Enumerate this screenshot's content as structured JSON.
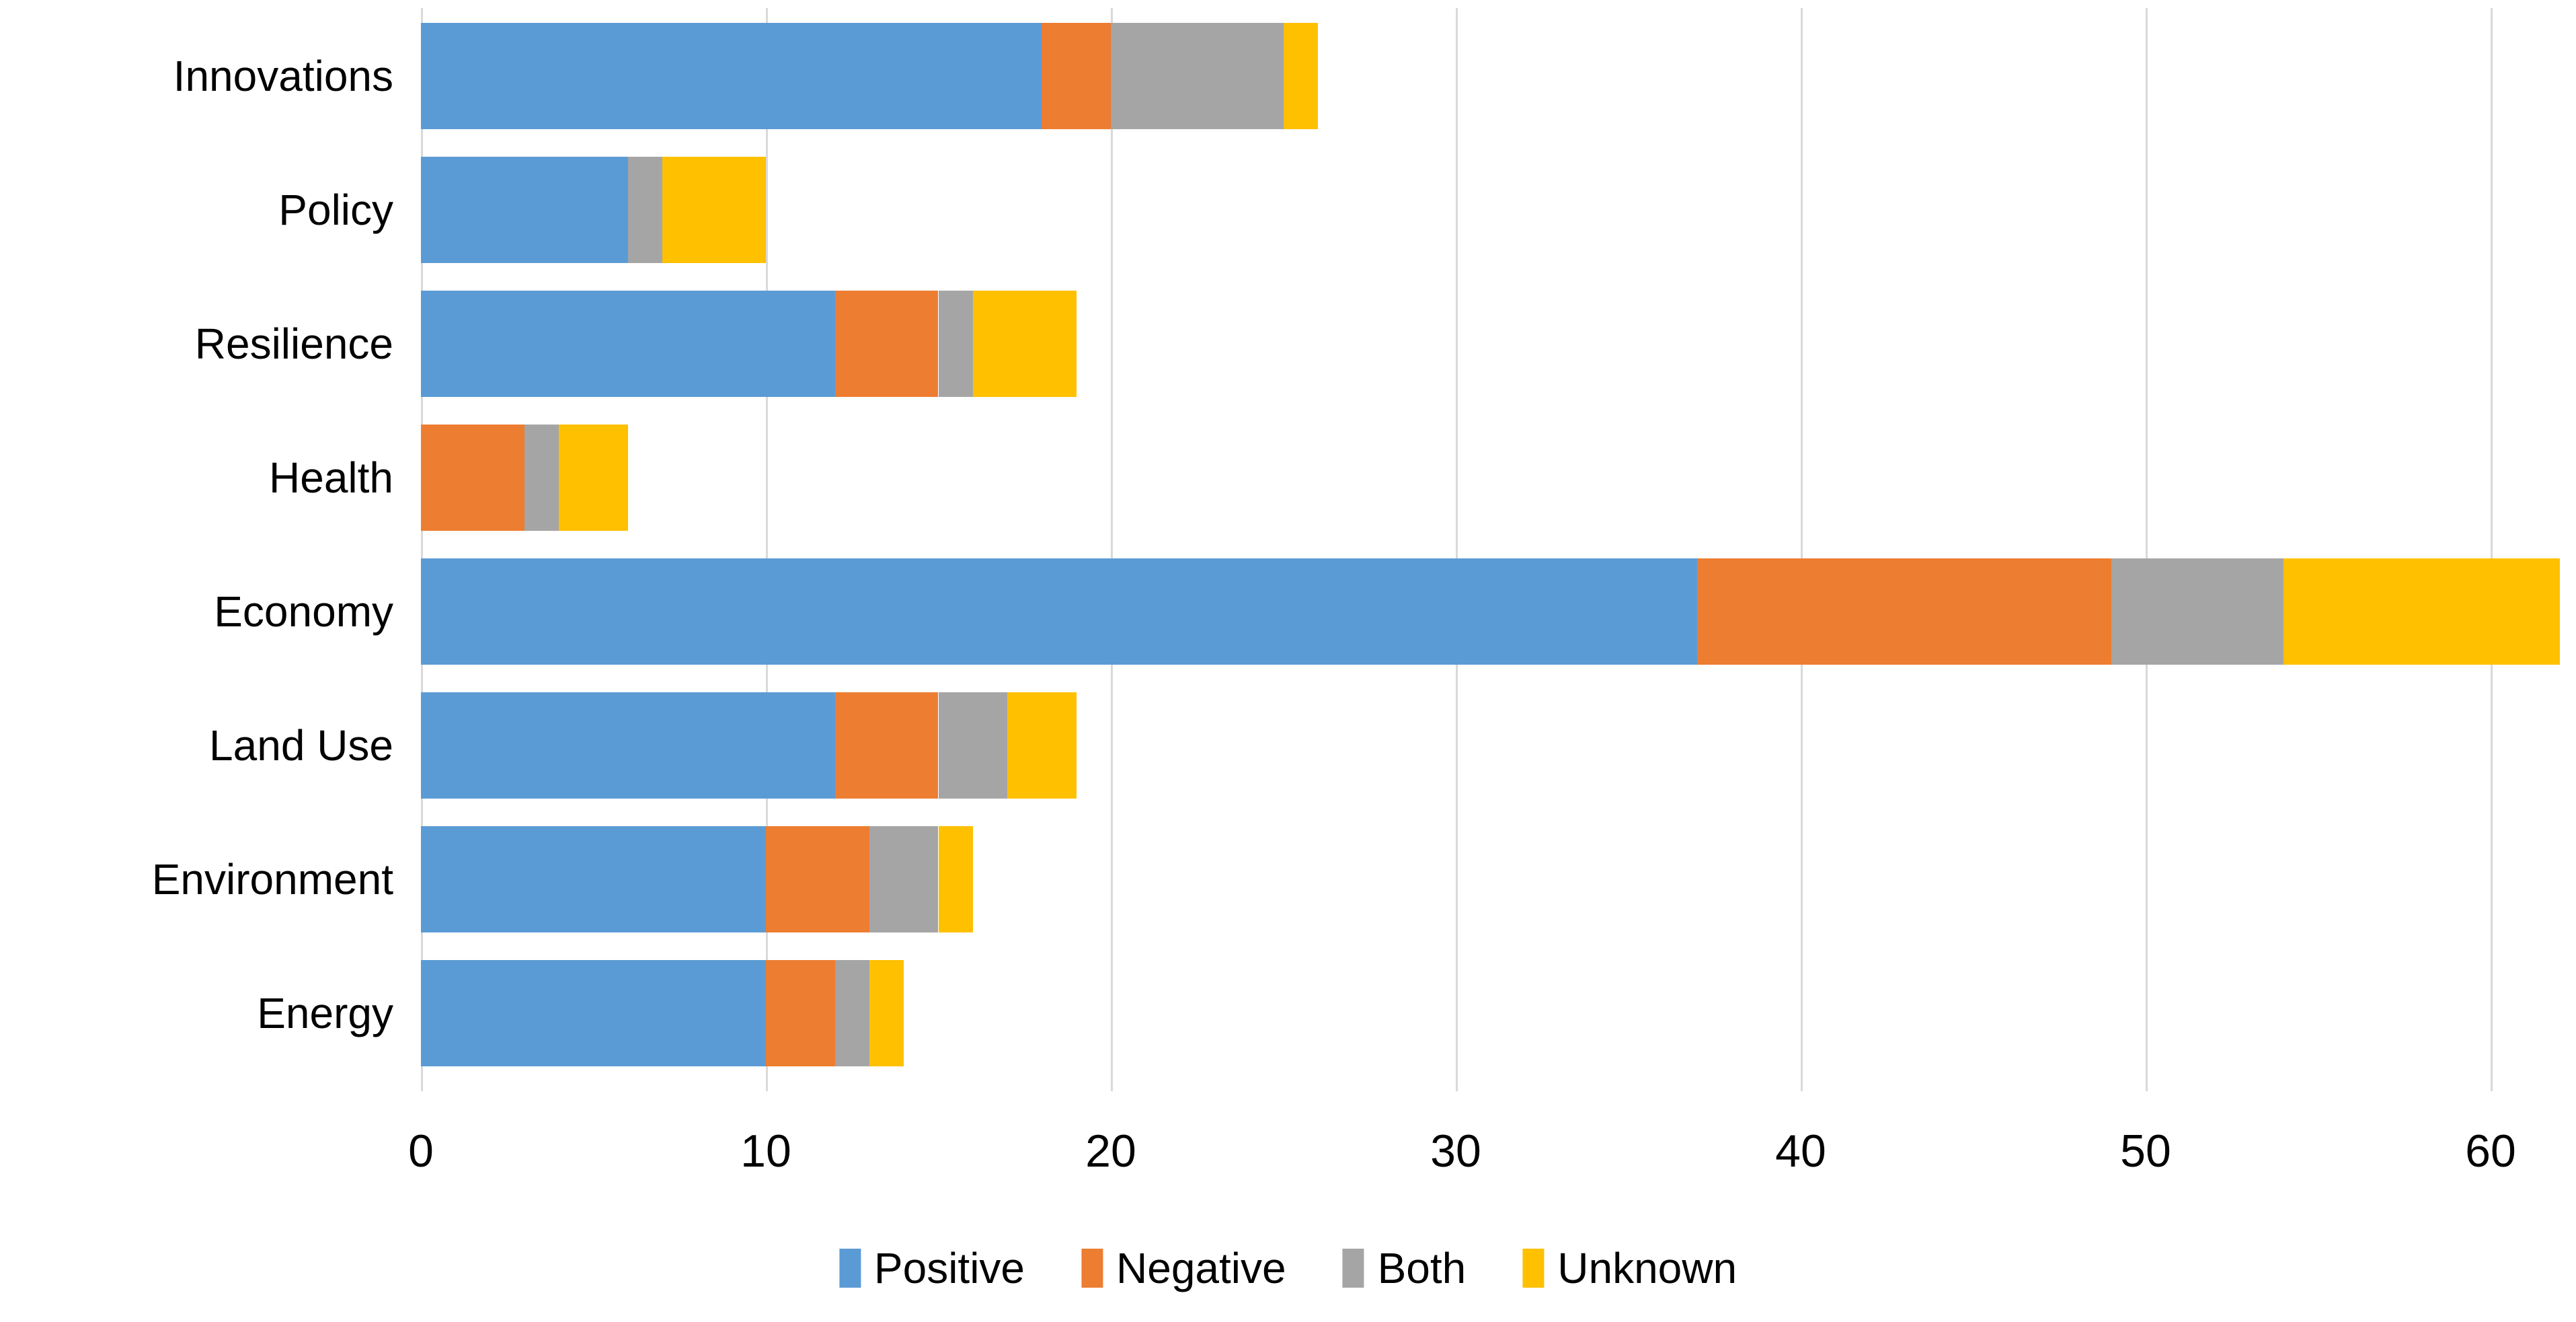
{
  "chart_data": {
    "type": "bar",
    "orientation": "horizontal",
    "stacked": true,
    "title": "",
    "xlabel": "",
    "ylabel": "",
    "categories": [
      "Innovations",
      "Policy",
      "Resilience",
      "Health",
      "Economy",
      "Land Use",
      "Environment",
      "Energy"
    ],
    "series": [
      {
        "name": "Positive",
        "color": "#5B9BD5",
        "values": [
          18,
          6,
          12,
          0,
          37,
          12,
          10,
          10
        ]
      },
      {
        "name": "Negative",
        "color": "#ED7D31",
        "values": [
          2,
          0,
          3,
          3,
          12,
          3,
          3,
          2
        ]
      },
      {
        "name": "Both",
        "color": "#A5A5A5",
        "values": [
          5,
          1,
          1,
          1,
          5,
          2,
          2,
          1
        ]
      },
      {
        "name": "Unknown",
        "color": "#FFC000",
        "values": [
          1,
          3,
          3,
          2,
          8,
          2,
          1,
          1
        ]
      }
    ],
    "totals": [
      26,
      10,
      19,
      6,
      62,
      19,
      16,
      14
    ],
    "x_axis": {
      "min": 0,
      "max": 62,
      "tick_step": 10,
      "tick_labels": [
        "0",
        "10",
        "20",
        "30",
        "40",
        "50",
        "60"
      ]
    },
    "grid": "vertical",
    "gridline_color": "#D9D9D9",
    "background_color": "#FFFFFF",
    "text_color": "#000000",
    "legend_position": "bottom"
  }
}
